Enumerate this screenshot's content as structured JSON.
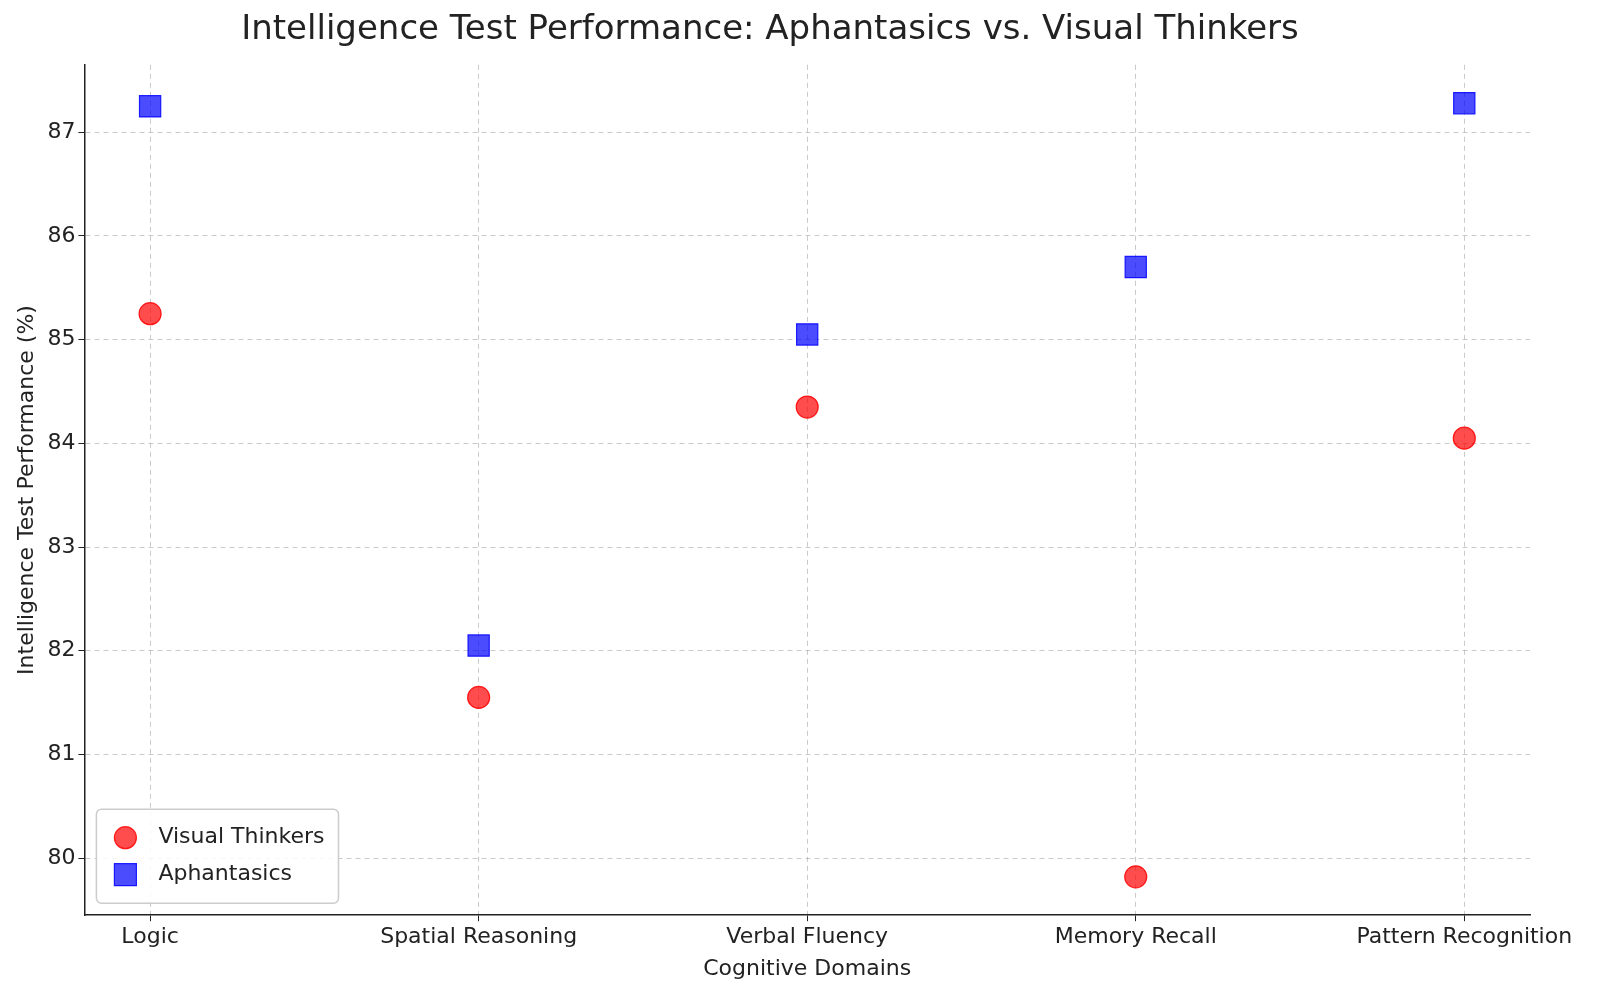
{
  "chart_data": {
    "type": "scatter",
    "title": "Intelligence Test Performance: Aphantasics vs. Visual Thinkers",
    "x_label": "Cognitive Domains",
    "y_label": "Intelligence Test Performance (%)",
    "categories": [
      "Logic",
      "Spatial Reasoning",
      "Verbal Fluency",
      "Memory Recall",
      "Pattern Recognition"
    ],
    "series": [
      {
        "name": "Visual Thinkers",
        "color": "#ff0000",
        "marker": "circle",
        "values": [
          85.25,
          81.55,
          84.35,
          79.82,
          84.05
        ]
      },
      {
        "name": "Aphantasics",
        "color": "#0000ff",
        "marker": "square",
        "values": [
          87.25,
          82.05,
          85.05,
          85.7,
          87.28
        ]
      }
    ],
    "ylim": [
      79.45,
      87.65
    ],
    "yticks": [
      80,
      81,
      82,
      83,
      84,
      85,
      86,
      87
    ],
    "grid": true,
    "legend": "lower left"
  }
}
